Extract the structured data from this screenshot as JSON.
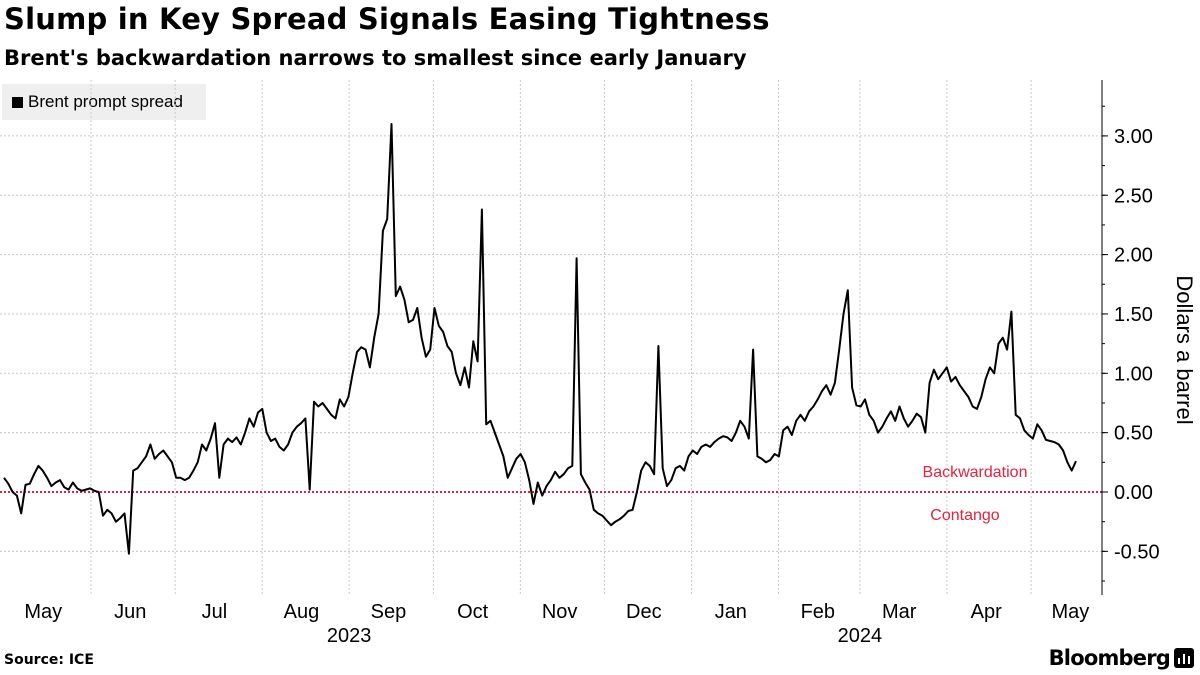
{
  "chart_data": {
    "type": "line",
    "title": "Slump in Key Spread Signals Easing Tightness",
    "subtitle": "Brent's backwardation narrows to smallest since early January",
    "ylabel": "Dollars a barrel",
    "ylim": [
      -0.8,
      3.4
    ],
    "y_ticks": [
      "3.00",
      "2.50",
      "2.00",
      "1.50",
      "1.00",
      "0.50",
      "0.00",
      "-0.50"
    ],
    "y_tick_values": [
      3.0,
      2.5,
      2.0,
      1.5,
      1.0,
      0.5,
      0.0,
      -0.5
    ],
    "x_ticks": [
      "May",
      "Jun",
      "Jul",
      "Aug",
      "Sep",
      "Oct",
      "Nov",
      "Dec",
      "Jan",
      "Feb",
      "Mar",
      "Apr",
      "May"
    ],
    "x_tick_months": [
      "2023-05",
      "2023-06",
      "2023-07",
      "2023-08",
      "2023-09",
      "2023-10",
      "2023-11",
      "2023-12",
      "2024-01",
      "2024-02",
      "2024-03",
      "2024-04",
      "2024-05"
    ],
    "year_labels": [
      "2023",
      "2024"
    ],
    "year_label_months": [
      "2023-09",
      "2024-03"
    ],
    "annotations": {
      "above_zero": "Backwardation",
      "below_zero": "Contango"
    },
    "reference_line": {
      "y": 0,
      "style": "dotted",
      "color": "#e8213c"
    },
    "colors": {
      "line": "#000000",
      "zero_line": "#e8213c",
      "grid": "#c8c8c8"
    },
    "legend": {
      "placement": "top-left"
    },
    "series": [
      {
        "name": "Brent prompt spread",
        "x_start": "2023-05-01",
        "x_end": "2024-05-17",
        "values": [
          0.12,
          0.07,
          0.0,
          -0.03,
          -0.18,
          0.06,
          0.07,
          0.15,
          0.22,
          0.18,
          0.12,
          0.05,
          0.08,
          0.1,
          0.04,
          0.02,
          0.08,
          0.03,
          0.01,
          0.02,
          0.03,
          0.01,
          0.0,
          -0.2,
          -0.15,
          -0.18,
          -0.25,
          -0.22,
          -0.18,
          -0.52,
          0.18,
          0.2,
          0.25,
          0.3,
          0.4,
          0.28,
          0.32,
          0.35,
          0.3,
          0.25,
          0.12,
          0.12,
          0.1,
          0.12,
          0.18,
          0.25,
          0.4,
          0.35,
          0.45,
          0.58,
          0.12,
          0.4,
          0.45,
          0.42,
          0.46,
          0.4,
          0.5,
          0.62,
          0.55,
          0.67,
          0.7,
          0.5,
          0.43,
          0.45,
          0.38,
          0.35,
          0.4,
          0.5,
          0.55,
          0.58,
          0.62,
          0.02,
          0.76,
          0.72,
          0.75,
          0.7,
          0.65,
          0.62,
          0.78,
          0.72,
          0.8,
          1.0,
          1.18,
          1.22,
          1.2,
          1.05,
          1.3,
          1.5,
          2.2,
          2.3,
          3.1,
          1.65,
          1.73,
          1.62,
          1.43,
          1.45,
          1.55,
          1.3,
          1.14,
          1.2,
          1.55,
          1.4,
          1.35,
          1.23,
          1.18,
          1.0,
          0.9,
          1.05,
          0.88,
          1.27,
          1.1,
          2.38,
          0.57,
          0.6,
          0.5,
          0.4,
          0.3,
          0.12,
          0.2,
          0.28,
          0.32,
          0.25,
          0.1,
          -0.1,
          0.08,
          -0.03,
          0.05,
          0.1,
          0.17,
          0.12,
          0.15,
          0.2,
          0.22,
          1.97,
          0.15,
          0.08,
          0.02,
          -0.15,
          -0.18,
          -0.2,
          -0.24,
          -0.28,
          -0.25,
          -0.23,
          -0.2,
          -0.16,
          -0.15,
          0.0,
          0.18,
          0.25,
          0.22,
          0.15,
          1.23,
          0.2,
          0.05,
          0.1,
          0.2,
          0.22,
          0.18,
          0.3,
          0.35,
          0.32,
          0.38,
          0.4,
          0.38,
          0.42,
          0.45,
          0.47,
          0.46,
          0.43,
          0.5,
          0.6,
          0.55,
          0.45,
          1.2,
          0.3,
          0.28,
          0.25,
          0.27,
          0.32,
          0.3,
          0.52,
          0.55,
          0.48,
          0.6,
          0.65,
          0.6,
          0.68,
          0.72,
          0.78,
          0.85,
          0.9,
          0.82,
          0.92,
          1.2,
          1.5,
          1.7,
          0.88,
          0.73,
          0.72,
          0.78,
          0.65,
          0.6,
          0.5,
          0.55,
          0.62,
          0.68,
          0.6,
          0.72,
          0.62,
          0.55,
          0.6,
          0.66,
          0.63,
          0.5,
          0.92,
          1.03,
          0.95,
          1.0,
          1.05,
          0.93,
          0.97,
          0.9,
          0.85,
          0.8,
          0.72,
          0.7,
          0.8,
          0.95,
          1.05,
          1.0,
          1.25,
          1.3,
          1.2,
          1.52,
          0.65,
          0.62,
          0.52,
          0.48,
          0.45,
          0.57,
          0.52,
          0.44,
          0.43,
          0.42,
          0.4,
          0.35,
          0.25,
          0.18,
          0.26
        ]
      }
    ]
  },
  "source_text": "Source: ICE",
  "brand_text": "Bloomberg",
  "logo_icon": "bloomberg-terminal-icon"
}
